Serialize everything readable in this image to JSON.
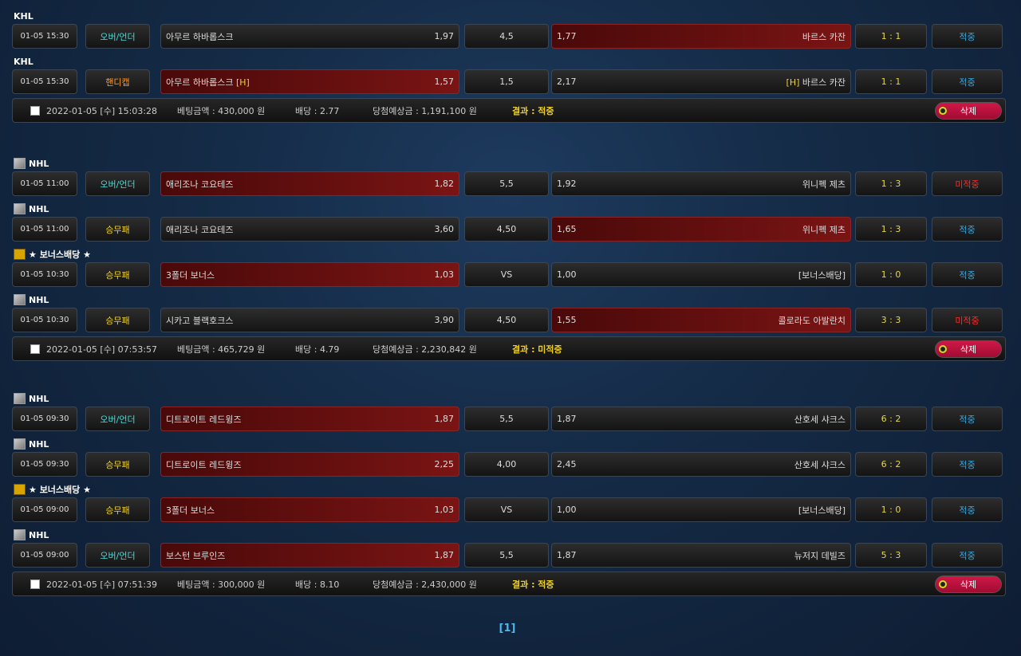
{
  "groups": [
    {
      "matches": [
        {
          "league": "KHL",
          "icon": "league-icon",
          "date": "01-05 15:30",
          "type": "오버/언더",
          "type_class": "ou",
          "home": "아무르 하바롭스크",
          "home_tag": "",
          "home_odds": "1,97",
          "hcp": "4,5",
          "away_odds": "1,77",
          "away": "바르스 카잔",
          "away_tag": "",
          "pick": "away",
          "score": "1 : 1",
          "result": "적중",
          "hit": true
        },
        {
          "league": "KHL",
          "icon": "league-icon",
          "date": "01-05 15:30",
          "type": "핸디캡",
          "type_class": "hc",
          "home": "아무르 하바롭스크",
          "home_tag": "[H]",
          "home_odds": "1,57",
          "hcp": "1,5",
          "away_odds": "2,17",
          "away": "바르스 카잔",
          "away_tag": "[H]",
          "pick": "home",
          "score": "1 : 1",
          "result": "적중",
          "hit": true
        }
      ],
      "summary": {
        "date": "2022-01-05 [수] 15:03:28",
        "amount": "베팅금액 : 430,000 원",
        "odds": "배당 : 2.77",
        "expected": "당첨예상금 : 1,191,100 원",
        "result": "결과 : 적중",
        "delete": "삭제"
      }
    },
    {
      "matches": [
        {
          "league": "NHL",
          "icon": "hockey-icon",
          "date": "01-05 11:00",
          "type": "오버/언더",
          "type_class": "ou",
          "home": "애리조나 코요테즈",
          "home_tag": "",
          "home_odds": "1,82",
          "hcp": "5,5",
          "away_odds": "1,92",
          "away": "위니펙 제츠",
          "away_tag": "",
          "pick": "home",
          "score": "1 : 3",
          "result": "미적중",
          "hit": false
        },
        {
          "league": "NHL",
          "icon": "hockey-icon",
          "date": "01-05 11:00",
          "type": "승무패",
          "type_class": "wdl",
          "home": "애리조나 코요테즈",
          "home_tag": "",
          "home_odds": "3,60",
          "hcp": "4,50",
          "away_odds": "1,65",
          "away": "위니펙 제츠",
          "away_tag": "",
          "pick": "away",
          "score": "1 : 3",
          "result": "적중",
          "hit": true
        },
        {
          "league": "★ 보너스배당 ★",
          "icon": "bonus-icon",
          "date": "01-05 10:30",
          "type": "승무패",
          "type_class": "wdl",
          "home": "3폴더 보너스",
          "home_tag": "",
          "home_odds": "1,03",
          "hcp": "VS",
          "away_odds": "1,00",
          "away": "[보너스배당]",
          "away_tag": "",
          "pick": "home",
          "score": "1 : 0",
          "result": "적중",
          "hit": true
        },
        {
          "league": "NHL",
          "icon": "hockey-icon",
          "date": "01-05 10:30",
          "type": "승무패",
          "type_class": "wdl",
          "home": "시카고 블랙호크스",
          "home_tag": "",
          "home_odds": "3,90",
          "hcp": "4,50",
          "away_odds": "1,55",
          "away": "콜로라도 아발란치",
          "away_tag": "",
          "pick": "away",
          "score": "3 : 3",
          "result": "미적중",
          "hit": false
        }
      ],
      "summary": {
        "date": "2022-01-05 [수] 07:53:57",
        "amount": "베팅금액 : 465,729 원",
        "odds": "배당 : 4.79",
        "expected": "당첨예상금 : 2,230,842 원",
        "result": "결과 : 미적중",
        "delete": "삭제"
      }
    },
    {
      "matches": [
        {
          "league": "NHL",
          "icon": "hockey-icon",
          "date": "01-05 09:30",
          "type": "오버/언더",
          "type_class": "ou",
          "home": "디트로이트 레드윙즈",
          "home_tag": "",
          "home_odds": "1,87",
          "hcp": "5,5",
          "away_odds": "1,87",
          "away": "산호세 샤크스",
          "away_tag": "",
          "pick": "home",
          "score": "6 : 2",
          "result": "적중",
          "hit": true
        },
        {
          "league": "NHL",
          "icon": "hockey-icon",
          "date": "01-05 09:30",
          "type": "승무패",
          "type_class": "wdl",
          "home": "디트로이트 레드윙즈",
          "home_tag": "",
          "home_odds": "2,25",
          "hcp": "4,00",
          "away_odds": "2,45",
          "away": "산호세 샤크스",
          "away_tag": "",
          "pick": "home",
          "score": "6 : 2",
          "result": "적중",
          "hit": true
        },
        {
          "league": "★ 보너스배당 ★",
          "icon": "bonus-icon",
          "date": "01-05 09:00",
          "type": "승무패",
          "type_class": "wdl",
          "home": "3폴더 보너스",
          "home_tag": "",
          "home_odds": "1,03",
          "hcp": "VS",
          "away_odds": "1,00",
          "away": "[보너스배당]",
          "away_tag": "",
          "pick": "home",
          "score": "1 : 0",
          "result": "적중",
          "hit": true
        },
        {
          "league": "NHL",
          "icon": "hockey-icon",
          "date": "01-05 09:00",
          "type": "오버/언더",
          "type_class": "ou",
          "home": "보스턴 브루인즈",
          "home_tag": "",
          "home_odds": "1,87",
          "hcp": "5,5",
          "away_odds": "1,87",
          "away": "뉴저지 데빌즈",
          "away_tag": "",
          "pick": "home",
          "score": "5 : 3",
          "result": "적중",
          "hit": true
        }
      ],
      "summary": {
        "date": "2022-01-05 [수] 07:51:39",
        "amount": "베팅금액 : 300,000 원",
        "odds": "배당 : 8.10",
        "expected": "당첨예상금 : 2,430,000 원",
        "result": "결과 : 적중",
        "delete": "삭제"
      }
    }
  ],
  "pager": {
    "current": "[1]"
  },
  "colors": {
    "selected": "#7a1414",
    "hit": "#3aa8e0",
    "miss": "#ff2a2a",
    "score": "#e6d64a",
    "delete": "#d01848"
  }
}
